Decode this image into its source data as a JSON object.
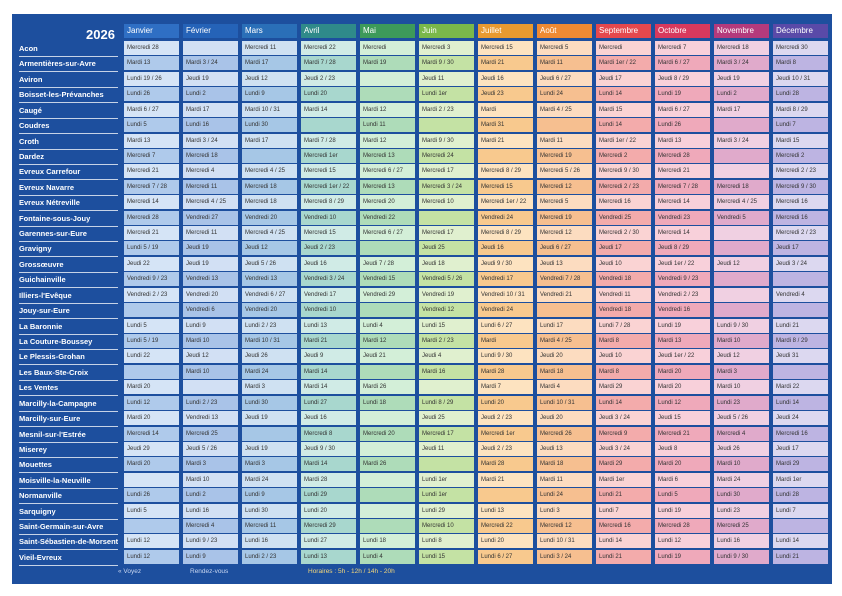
{
  "year": "2026",
  "towns": [
    "Acon",
    "Armentières-sur-Avre",
    "Aviron",
    "Boisset-les-Prévanches",
    "Caugé",
    "Coudres",
    "Croth",
    "Dardez",
    "Evreux Carrefour",
    "Evreux Navarre",
    "Evreux Nétreville",
    "Fontaine-sous-Jouy",
    "Garennes-sur-Eure",
    "Gravigny",
    "Grossœuvre",
    "Guichainville",
    "Illiers-l'Evêque",
    "Jouy-sur-Eure",
    "La Baronnie",
    "La Couture-Boussey",
    "Le Plessis-Grohan",
    "Les Baux-Ste-Croix",
    "Les Ventes",
    "Marcilly-la-Campagne",
    "Marcilly-sur-Eure",
    "Mesnil-sur-l'Estrée",
    "Miserey",
    "Mouettes",
    "Moisville-la-Neuville",
    "Normanville",
    "Sarquigny",
    "Saint-Germain-sur-Avre",
    "Saint-Sébastien-de-Morsent",
    "Vieil-Evreux"
  ],
  "months": [
    {
      "name": "Janvier",
      "header": "#2f6fc4",
      "light": "#d5e4f6",
      "dark": "#afcaeb",
      "cells": [
        "Mercredi 28",
        "Mardi 13",
        "Lundi 19 / 26",
        "Lundi 26",
        "Mardi 6 / 27",
        "Lundi 5",
        "Mardi 13",
        "Mercredi 7",
        "Mercredi 21",
        "Mercredi 7 / 28",
        "Mercredi 14",
        "Mercredi 28",
        "Mercredi 21",
        "Lundi 5 / 19",
        "Jeudi 22",
        "Vendredi 9 / 23",
        "Vendredi 2 / 23",
        "",
        "Lundi 5",
        "Lundi 5 / 19",
        "Lundi 22",
        "",
        "Mardi 20",
        "Lundi 12",
        "Mardi 20",
        "Mercredi 14",
        "Jeudi 29",
        "Mardi 20",
        "",
        "Lundi 26",
        "Lundi 5",
        "",
        "Lundi 12",
        "Lundi 12"
      ]
    },
    {
      "name": "Février",
      "header": "#2563b8",
      "light": "#d2e0f4",
      "dark": "#a9c3e8",
      "cells": [
        "",
        "Mardi 3 / 24",
        "Jeudi 19",
        "Lundi 2",
        "Mardi 17",
        "Lundi 16",
        "Mardi 3 / 24",
        "Mercredi 18",
        "Mercredi 4",
        "Mercredi 11",
        "Mercredi 4 / 25",
        "Vendredi 27",
        "Mercredi 11",
        "Jeudi 19",
        "Jeudi 19",
        "Vendredi 13",
        "Vendredi 20",
        "Vendredi 6",
        "Lundi 9",
        "Mardi 10",
        "Jeudi 12",
        "Mardi 10",
        "",
        "Lundi 2 / 23",
        "Vendredi 13",
        "Mercredi 25",
        "Jeudi 5 / 26",
        "Mardi 3",
        "Mardi 10",
        "Lundi 2",
        "Lundi 16",
        "Mercredi 4",
        "Lundi 9 / 23",
        "Lundi 9"
      ]
    },
    {
      "name": "Mars",
      "header": "#2a6fb8",
      "light": "#cfe1f2",
      "dark": "#a6c7e6",
      "cells": [
        "Mercredi 11",
        "Mardi 17",
        "Jeudi 12",
        "Lundi 9",
        "Mardi 10 / 31",
        "Lundi 30",
        "Mardi 17",
        "",
        "Mercredi 4 / 25",
        "Mercredi 18",
        "Mercredi 18",
        "Vendredi 20",
        "Mercredi 4 / 25",
        "Jeudi 12",
        "Jeudi 5 / 26",
        "Vendredi 13",
        "Vendredi 6 / 27",
        "Vendredi 20",
        "Lundi 2 / 23",
        "Mardi 10 / 31",
        "Jeudi 26",
        "Mardi 24",
        "Mardi 3",
        "Lundi 30",
        "Jeudi 19",
        "",
        "Jeudi 19",
        "Mardi 3",
        "Mardi 24",
        "Lundi 9",
        "Lundi 30",
        "Mercredi 11",
        "Lundi 16",
        "Lundi 2 / 23"
      ]
    },
    {
      "name": "Avril",
      "header": "#2f8a8a",
      "light": "#d0ebe6",
      "dark": "#a8d7ce",
      "cells": [
        "Mercredi 22",
        "Mardi 7 / 28",
        "Jeudi 2 / 23",
        "Lundi 20",
        "Mardi 14",
        "",
        "Mardi 7 / 28",
        "Mercredi 1er",
        "Mercredi 15",
        "Mercredi 1er / 22",
        "Mercredi 8 / 29",
        "Vendredi 10",
        "Mercredi 15",
        "Jeudi 2 / 23",
        "Jeudi 16",
        "Vendredi 3 / 24",
        "Vendredi 17",
        "Vendredi 10",
        "Lundi 13",
        "Mardi 21",
        "Jeudi 9",
        "Mardi 14",
        "Mardi 14",
        "Lundi 27",
        "Jeudi 16",
        "Mercredi 8",
        "Jeudi 9 / 30",
        "Mardi 14",
        "Mardi 28",
        "Lundi 29",
        "Lundi 20",
        "Mercredi 29",
        "Lundi 27",
        "Lundi 13"
      ]
    },
    {
      "name": "Mai",
      "header": "#3d9a5a",
      "light": "#d3efd8",
      "dark": "#aedcb9",
      "cells": [
        "Mercredi",
        "Mardi 19",
        "",
        "",
        "Mardi 12",
        "Lundi 11",
        "Mardi 12",
        "Mercredi 13",
        "Mercredi 6 / 27",
        "Mercredi 13",
        "Mercredi 20",
        "Vendredi 22",
        "Mercredi 6 / 27",
        "",
        "Jeudi 7 / 28",
        "Vendredi 15",
        "Vendredi 29",
        "",
        "Lundi 4",
        "Mardi 12",
        "Jeudi 21",
        "",
        "Mardi 26",
        "Lundi 18",
        "",
        "Mercredi 20",
        "",
        "Mardi 26",
        "",
        "",
        "",
        "",
        "Lundi 18",
        "Lundi 4"
      ]
    },
    {
      "name": "Juin",
      "header": "#7ab84a",
      "light": "#e0f0cf",
      "dark": "#c4e2a4",
      "cells": [
        "Mercredi 3",
        "Mardi 9 / 30",
        "Jeudi 11",
        "Lundi 1er",
        "Mardi 2 / 23",
        "",
        "Mardi 9 / 30",
        "Mercredi 24",
        "Mercredi 17",
        "Mercredi 3 / 24",
        "Mercredi 10",
        "",
        "Mercredi 17",
        "Jeudi 25",
        "Jeudi 18",
        "Vendredi 5 / 26",
        "Vendredi 19",
        "Vendredi 12",
        "Lundi 15",
        "Mardi 2 / 23",
        "Jeudi 4",
        "Mardi 16",
        "",
        "Lundi 8 / 29",
        "Jeudi 25",
        "Mercredi 17",
        "Jeudi 11",
        "",
        "Lundi 1er",
        "Lundi 1er",
        "Lundi 29",
        "Mercredi 10",
        "Lundi 8",
        "Lundi 15"
      ]
    },
    {
      "name": "Juillet",
      "header": "#e89a30",
      "light": "#fde3c0",
      "dark": "#f8c98e",
      "cells": [
        "Mercredi 15",
        "Mardi 21",
        "Jeudi 16",
        "Jeudi 23",
        "Mardi",
        "Mardi 31",
        "Mardi 21",
        "",
        "Mercredi 8 / 29",
        "Mercredi 15",
        "Mercredi 1er / 22",
        "Vendredi 24",
        "Mercredi 8 / 29",
        "Jeudi 16",
        "Jeudi 9 / 30",
        "Vendredi 17",
        "Vendredi 10 / 31",
        "Vendredi 24",
        "Lundi 6 / 27",
        "Mardi",
        "Lundi 9 / 30",
        "Mardi 28",
        "Mardi 7",
        "Lundi 20",
        "Jeudi 2 / 23",
        "Mercredi 1er",
        "Jeudi 2 / 23",
        "Mardi 28",
        "Mardi 21",
        "",
        "Lundi 13",
        "Mercredi 22",
        "Lundi 20",
        "Lundi 6 / 27"
      ]
    },
    {
      "name": "Août",
      "header": "#ee8a33",
      "light": "#fcdcc0",
      "dark": "#f6bf90",
      "cells": [
        "Mercredi 5",
        "Mardi 11",
        "Jeudi 6 / 27",
        "Lundi 24",
        "Mardi 4 / 25",
        "",
        "Mardi 11",
        "Mercredi 19",
        "Mercredi 5 / 26",
        "Mercredi 12",
        "Mercredi 5",
        "Mercredi 19",
        "Mercredi 12",
        "Jeudi 6 / 27",
        "Jeudi 13",
        "Vendredi 7 / 28",
        "Vendredi 21",
        "",
        "Lundi 17",
        "Mardi 4 / 25",
        "Jeudi 20",
        "Mardi 18",
        "Mardi 4",
        "Lundi 10 / 31",
        "Jeudi 20",
        "Mercredi 26",
        "Jeudi 13",
        "Mardi 18",
        "Mardi 11",
        "Lundi 24",
        "Lundi 3",
        "Mercredi 12",
        "Lundi 10 / 31",
        "Lundi 3 / 24"
      ]
    },
    {
      "name": "Septembre",
      "header": "#e5484d",
      "light": "#fad3d3",
      "dark": "#f3abab",
      "cells": [
        "Mercredi",
        "Mardi 1er / 22",
        "Jeudi 17",
        "Lundi 14",
        "Mardi 15",
        "Lundi 14",
        "Mardi 1er / 22",
        "Mercredi 2",
        "Mercredi 9 / 30",
        "Mercredi 2 / 23",
        "Mercredi 16",
        "Vendredi 25",
        "Mercredi 2 / 30",
        "Jeudi 17",
        "Jeudi 10",
        "Vendredi 18",
        "Vendredi 11",
        "Vendredi 18",
        "Lundi 7 / 28",
        "Mardi 8",
        "Jeudi 10",
        "Mardi 8",
        "Mardi 29",
        "Lundi 14",
        "Jeudi 3 / 24",
        "Mercredi 9",
        "Jeudi 3 / 24",
        "Mardi 29",
        "Mardi 1er",
        "Lundi 21",
        "Lundi 7",
        "Mercredi 16",
        "Lundi 14",
        "Lundi 21"
      ]
    },
    {
      "name": "Octobre",
      "header": "#d8395d",
      "light": "#f8d0da",
      "dark": "#efa9ba",
      "cells": [
        "Mercredi 7",
        "Mardi 6 / 27",
        "Jeudi 8 / 29",
        "Lundi 19",
        "Mardi 6 / 27",
        "Lundi 26",
        "Mardi 13",
        "Mercredi 28",
        "Mercredi 21",
        "Mercredi 7 / 28",
        "Mercredi 14",
        "Vendredi 23",
        "Mercredi 14",
        "Jeudi 8 / 29",
        "Jeudi 1er / 22",
        "Vendredi 9 / 23",
        "Vendredi 2 / 23",
        "Vendredi 16",
        "Lundi 19",
        "Mardi 13",
        "Jeudi 1er / 22",
        "Mardi 20",
        "Mardi 20",
        "Lundi 12",
        "Jeudi 15",
        "Mercredi 21",
        "Jeudi 8",
        "Mardi 20",
        "Mardi 6",
        "Lundi 5",
        "Lundi 19",
        "Mercredi 28",
        "Lundi 12",
        "Lundi 19"
      ]
    },
    {
      "name": "Novembre",
      "header": "#b43a7c",
      "light": "#f0d0e2",
      "dark": "#e0aacb",
      "cells": [
        "Mercredi 18",
        "Mardi 3 / 24",
        "Jeudi 19",
        "Lundi 2",
        "Mardi 17",
        "",
        "Mardi 3 / 24",
        "",
        "",
        "Mercredi 18",
        "Mercredi 4 / 25",
        "Vendredi 5",
        "",
        "",
        "Jeudi 12",
        "",
        "",
        "",
        "Lundi 9 / 30",
        "Mardi 10",
        "Jeudi 12",
        "Mardi 3",
        "Mardi 10",
        "Lundi 23",
        "Jeudi 5 / 26",
        "Mercredi 4",
        "Jeudi 26",
        "Mardi 10",
        "Mardi 24",
        "Lundi 30",
        "Lundi 23",
        "Mercredi 25",
        "Lundi 16",
        "Lundi 9 / 30"
      ]
    },
    {
      "name": "Décembre",
      "header": "#5a4aa8",
      "light": "#dcd8f0",
      "dark": "#bdb4e2",
      "cells": [
        "Mercredi 30",
        "Mardi 8",
        "Jeudi 10 / 31",
        "Lundi 28",
        "Mardi 8 / 29",
        "Lundi 7",
        "Mardi 15",
        "Mercredi 2",
        "Mercredi 2 / 23",
        "Mercredi 9 / 30",
        "Mercredi 16",
        "Mercredi 16",
        "Mercredi 2 / 23",
        "Jeudi 17",
        "Jeudi 3 / 24",
        "",
        "Vendredi 4",
        "",
        "Lundi 21",
        "Mardi 8 / 29",
        "Jeudi 31",
        "",
        "Mardi 22",
        "Lundi 14",
        "Jeudi 24",
        "Mercredi 16",
        "Jeudi 17",
        "Mardi 29",
        "Mardi 1er",
        "Lundi 28",
        "Lundi 7",
        "",
        "Lundi 14",
        "Lundi 21"
      ]
    }
  ],
  "footer": {
    "left": "« Voyez",
    "mid": "Rendez-vous",
    "hours": "Horaires : 5h - 12h / 14h - 20h"
  }
}
